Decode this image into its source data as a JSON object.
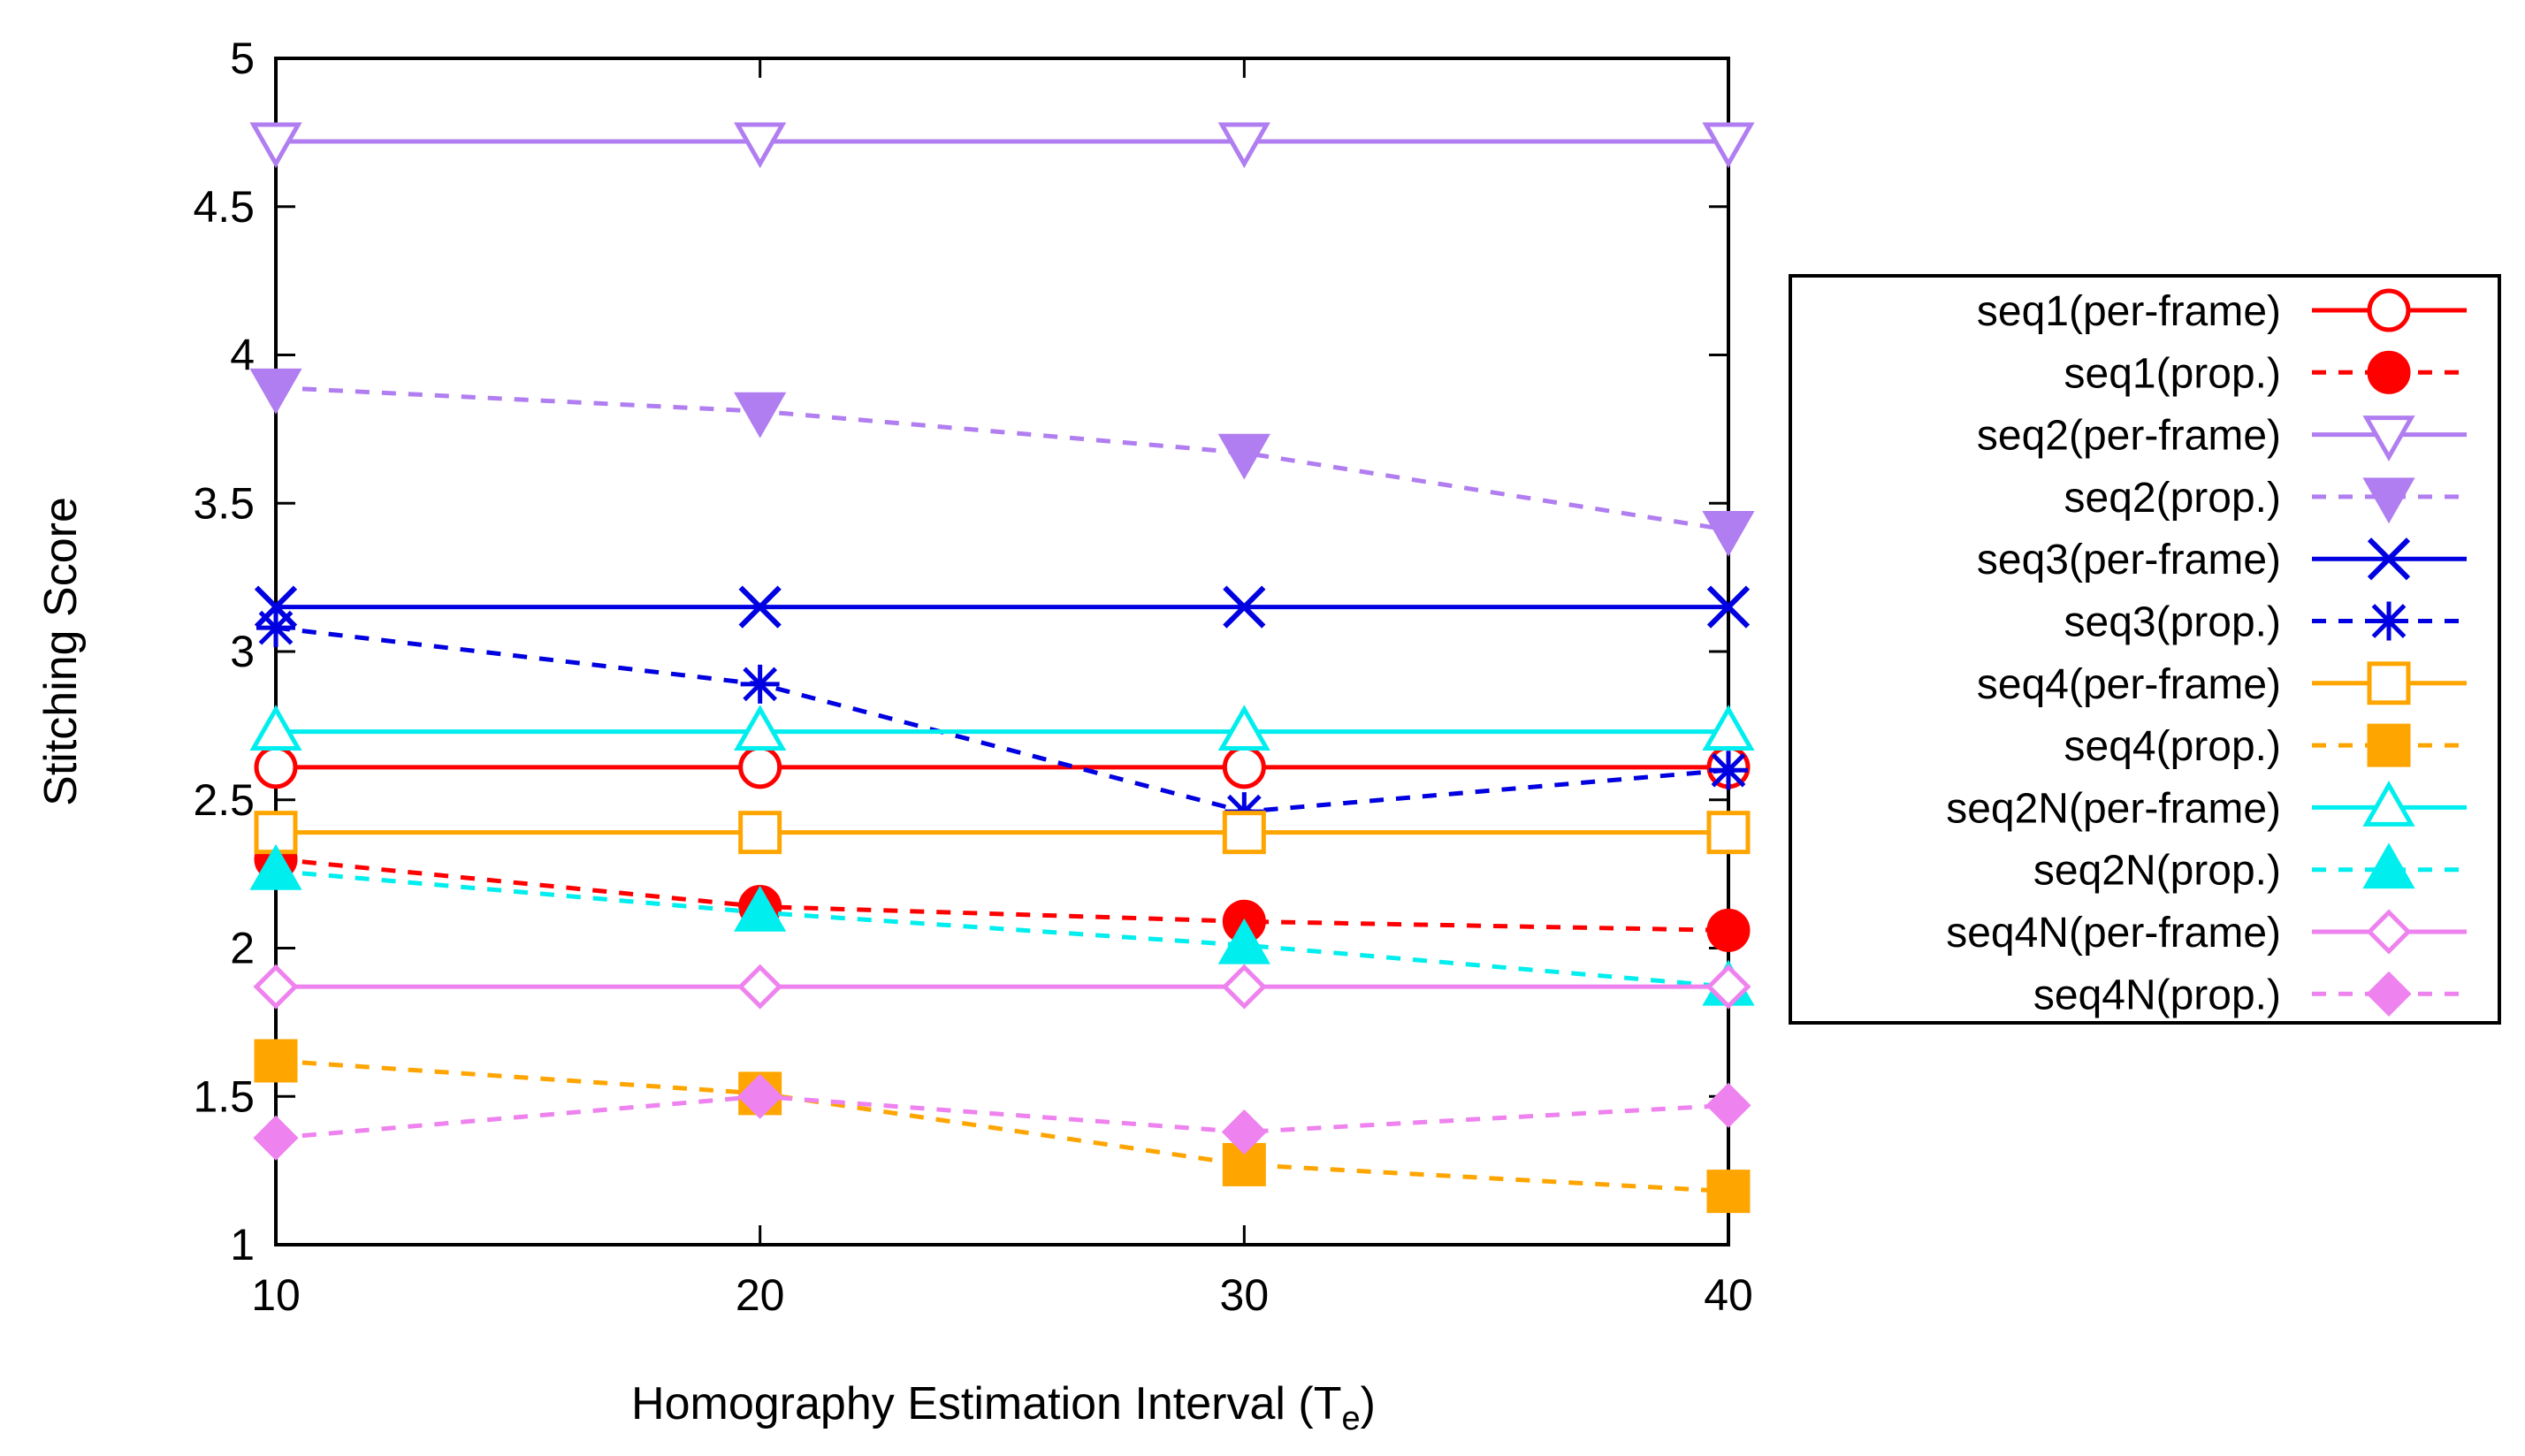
{
  "chart_data": {
    "type": "line",
    "title": "",
    "xlabel": "Homography Estimation Interval (T",
    "xlabel_subscript": "e",
    "xlabel_suffix": ")",
    "ylabel": "Stitching Score",
    "x": [
      10,
      20,
      30,
      40
    ],
    "xlim": [
      10,
      40
    ],
    "ylim": [
      1,
      5
    ],
    "xticks": [
      "10",
      "20",
      "30",
      "40"
    ],
    "yticks": [
      "1",
      "1.5",
      "2",
      "2.5",
      "3",
      "3.5",
      "4",
      "4.5",
      "5"
    ],
    "grid": false,
    "legend_position": "right",
    "series": [
      {
        "name": "seq1(per-frame)",
        "values": [
          2.61,
          2.61,
          2.61,
          2.61
        ],
        "color": "#ff0000",
        "dashed": false,
        "marker": "circle-open"
      },
      {
        "name": "seq1(prop.)",
        "values": [
          2.3,
          2.14,
          2.09,
          2.06
        ],
        "color": "#ff0000",
        "dashed": true,
        "marker": "circle-filled"
      },
      {
        "name": "seq2(per-frame)",
        "values": [
          4.72,
          4.72,
          4.72,
          4.72
        ],
        "color": "#b07ef0",
        "dashed": false,
        "marker": "triangle-down-open"
      },
      {
        "name": "seq2(prop.)",
        "values": [
          3.89,
          3.81,
          3.67,
          3.41
        ],
        "color": "#b07ef0",
        "dashed": true,
        "marker": "triangle-down-filled"
      },
      {
        "name": "seq3(per-frame)",
        "values": [
          3.15,
          3.15,
          3.15,
          3.15
        ],
        "color": "#0000e0",
        "dashed": false,
        "marker": "x"
      },
      {
        "name": "seq3(prop.)",
        "values": [
          3.08,
          2.89,
          2.46,
          2.6
        ],
        "color": "#0000e0",
        "dashed": true,
        "marker": "star"
      },
      {
        "name": "seq4(per-frame)",
        "values": [
          2.39,
          2.39,
          2.39,
          2.39
        ],
        "color": "#ffa500",
        "dashed": false,
        "marker": "square-open"
      },
      {
        "name": "seq4(prop.)",
        "values": [
          1.62,
          1.51,
          1.27,
          1.18
        ],
        "color": "#ffa500",
        "dashed": true,
        "marker": "square-filled"
      },
      {
        "name": "seq2N(per-frame)",
        "values": [
          2.73,
          2.73,
          2.73,
          2.73
        ],
        "color": "#00eeee",
        "dashed": false,
        "marker": "triangle-up-open"
      },
      {
        "name": "seq2N(prop.)",
        "values": [
          2.26,
          2.12,
          2.01,
          1.87
        ],
        "color": "#00eeee",
        "dashed": true,
        "marker": "triangle-up-filled"
      },
      {
        "name": "seq4N(per-frame)",
        "values": [
          1.87,
          1.87,
          1.87,
          1.87
        ],
        "color": "#ee82ee",
        "dashed": false,
        "marker": "diamond-open"
      },
      {
        "name": "seq4N(prop.)",
        "values": [
          1.36,
          1.5,
          1.38,
          1.47
        ],
        "color": "#ee82ee",
        "dashed": true,
        "marker": "diamond-filled"
      }
    ]
  }
}
